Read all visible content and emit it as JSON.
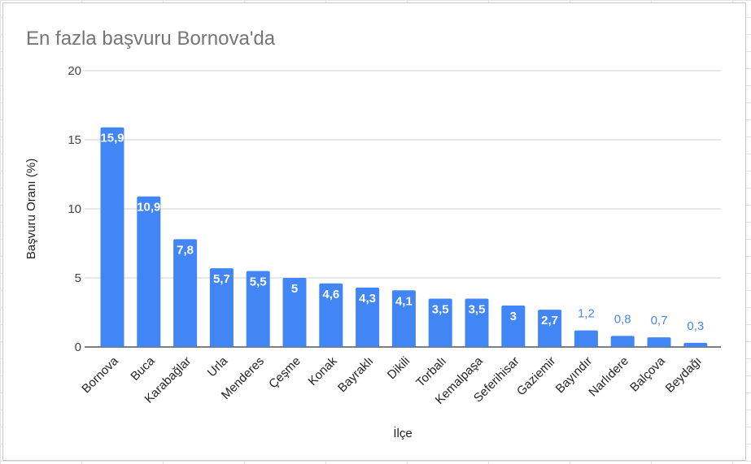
{
  "chart_data": {
    "type": "bar",
    "title": "En fazla başvuru Bornova'da",
    "xlabel": "İlçe",
    "ylabel": "Başvuru Oranı (%)",
    "ylim": [
      0,
      20
    ],
    "yticks": [
      0,
      5,
      10,
      15,
      20
    ],
    "grid": true,
    "legend": "none",
    "bar_color": "#4285f4",
    "label_color_outside": "#4a88e6",
    "label_color_inside": "#ffffff",
    "categories": [
      "Bornova",
      "Buca",
      "Karabağlar",
      "Urla",
      "Menderes",
      "Çeşme",
      "Konak",
      "Bayraklı",
      "Dikili",
      "Torbalı",
      "Kemalpaşa",
      "Seferihisar",
      "Gaziemir",
      "Bayındır",
      "Narlıdere",
      "Balçova",
      "Beydağı"
    ],
    "values": [
      15.9,
      10.9,
      7.8,
      5.7,
      5.5,
      5,
      4.6,
      4.3,
      4.1,
      3.5,
      3.5,
      3,
      2.7,
      1.2,
      0.8,
      0.7,
      0.3
    ],
    "value_labels": [
      "15,9",
      "10,9",
      "7,8",
      "5,7",
      "5,5",
      "5",
      "4,6",
      "4,3",
      "4,1",
      "3,5",
      "3,5",
      "3",
      "2,7",
      "1,2",
      "0,8",
      "0,7",
      "0,3"
    ]
  }
}
